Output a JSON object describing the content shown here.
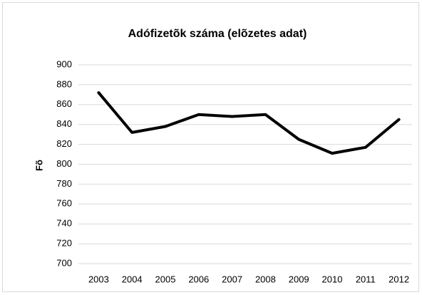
{
  "chart_data": {
    "type": "line",
    "title": "Adófizetõk száma (elõzetes adat)",
    "y_label": "Fõ",
    "categories": [
      "2003",
      "2004",
      "2005",
      "2006",
      "2007",
      "2008",
      "2009",
      "2010",
      "2011",
      "2012"
    ],
    "values": [
      872,
      832,
      838,
      850,
      848,
      850,
      825,
      811,
      817,
      845
    ],
    "color": "#000000",
    "ylim": [
      700,
      900
    ],
    "yticks": [
      700,
      720,
      740,
      760,
      780,
      800,
      820,
      840,
      860,
      880,
      900
    ],
    "grid": true
  }
}
